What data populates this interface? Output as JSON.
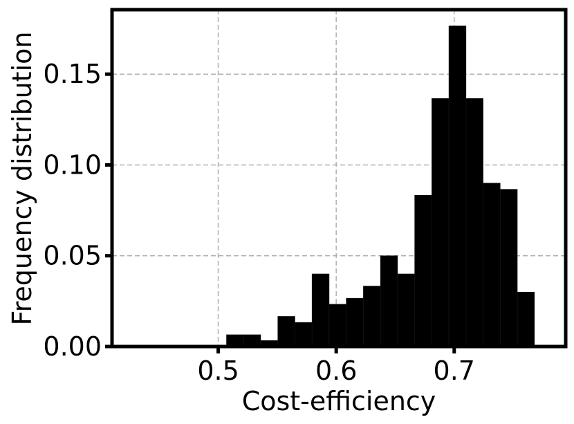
{
  "chart_data": {
    "type": "bar",
    "title": "",
    "xlabel": "Cost-efficiency",
    "ylabel": "Frequency distribution",
    "xlim": [
      0.41,
      0.7945
    ],
    "ylim": [
      0,
      0.1855
    ],
    "grid": true,
    "bar_color": "#000000",
    "xticks": [
      {
        "value": 0.5,
        "label": "0.5"
      },
      {
        "value": 0.6,
        "label": "0.6"
      },
      {
        "value": 0.7,
        "label": "0.7"
      }
    ],
    "yticks": [
      {
        "value": 0.0,
        "label": "0.00"
      },
      {
        "value": 0.05,
        "label": "0.05"
      },
      {
        "value": 0.1,
        "label": "0.10"
      },
      {
        "value": 0.15,
        "label": "0.15"
      }
    ],
    "bins": [
      {
        "left": 0.507,
        "right": 0.5215,
        "value": 0.0065
      },
      {
        "left": 0.5215,
        "right": 0.536,
        "value": 0.0065
      },
      {
        "left": 0.536,
        "right": 0.5505,
        "value": 0.0033
      },
      {
        "left": 0.5505,
        "right": 0.565,
        "value": 0.0166
      },
      {
        "left": 0.565,
        "right": 0.5795,
        "value": 0.0133
      },
      {
        "left": 0.5795,
        "right": 0.594,
        "value": 0.04
      },
      {
        "left": 0.594,
        "right": 0.6085,
        "value": 0.0233
      },
      {
        "left": 0.6085,
        "right": 0.623,
        "value": 0.0266
      },
      {
        "left": 0.623,
        "right": 0.6375,
        "value": 0.0333
      },
      {
        "left": 0.6375,
        "right": 0.652,
        "value": 0.05
      },
      {
        "left": 0.652,
        "right": 0.6665,
        "value": 0.04
      },
      {
        "left": 0.6665,
        "right": 0.681,
        "value": 0.0833
      },
      {
        "left": 0.681,
        "right": 0.6955,
        "value": 0.1366
      },
      {
        "left": 0.6955,
        "right": 0.71,
        "value": 0.1766
      },
      {
        "left": 0.71,
        "right": 0.7245,
        "value": 0.1366
      },
      {
        "left": 0.7245,
        "right": 0.739,
        "value": 0.09
      },
      {
        "left": 0.739,
        "right": 0.7535,
        "value": 0.0866
      },
      {
        "left": 0.7535,
        "right": 0.768,
        "value": 0.03
      }
    ]
  }
}
